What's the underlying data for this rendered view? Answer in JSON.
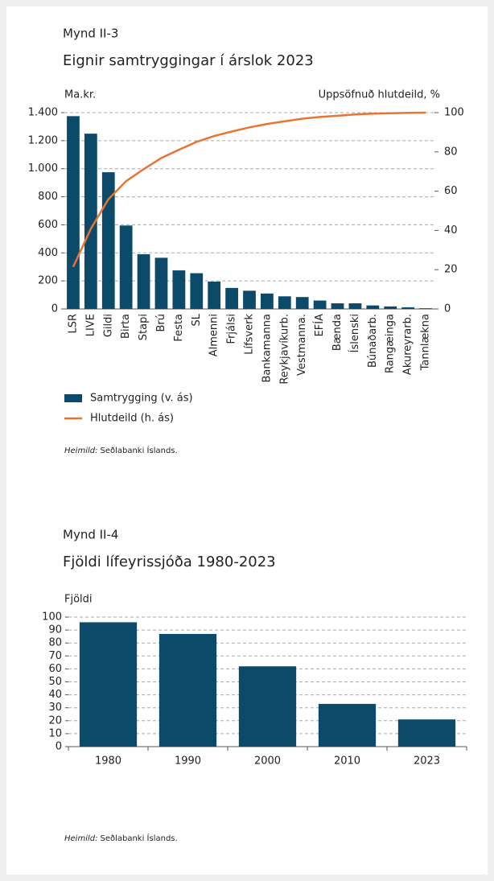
{
  "chart_data": [
    {
      "type": "bar",
      "label": "Mynd II-3",
      "title": "Eignir samtryggingar í árslok 2023",
      "ylabel": "Ma.kr.",
      "y2label": "Uppsöfnuð hlutdeild, %",
      "categories": [
        "LSR",
        "LIVE",
        "Gildi",
        "Birta",
        "Stapi",
        "Brú",
        "Festa",
        "SL",
        "Almenni",
        "Frjálsi",
        "Lífsverk",
        "Bankamanna",
        "Reykjavíkurb.",
        "Vestmanna.",
        "EFÍA",
        "Bænda",
        "Íslenski",
        "Búnaðarb.",
        "Rangæinga",
        "Akureyrarb.",
        "Tannlækna"
      ],
      "series": [
        {
          "name": "Samtrygging (v. ás)",
          "type": "bar",
          "color": "#0b4a68",
          "values": [
            1375,
            1250,
            975,
            595,
            390,
            365,
            275,
            255,
            195,
            150,
            130,
            110,
            90,
            85,
            60,
            40,
            40,
            25,
            18,
            12,
            5
          ]
        },
        {
          "name": "Hlutdeild (h. ás)",
          "type": "line",
          "axis": "y2",
          "color": "#e87433",
          "values": [
            21.4,
            40.8,
            55.9,
            65.1,
            71.2,
            76.9,
            81.1,
            85.1,
            88.1,
            90.4,
            92.5,
            94.2,
            95.6,
            96.9,
            97.8,
            98.4,
            99.1,
            99.5,
            99.7,
            99.9,
            100
          ]
        }
      ],
      "ylim": [
        0,
        1400
      ],
      "yticks": [
        0,
        200,
        400,
        600,
        800,
        {
          "value": 1000,
          "label": "1.000"
        },
        {
          "value": 1200,
          "label": "1.200"
        },
        {
          "value": 1400,
          "label": "1.400"
        }
      ],
      "y2lim": [
        0,
        100
      ],
      "y2ticks": [
        0,
        20,
        40,
        60,
        80,
        100
      ],
      "grid": true,
      "source_label": "Heimild:",
      "source": "Seðlabanki Íslands."
    },
    {
      "type": "bar",
      "label": "Mynd II-4",
      "title": "Fjöldi lífeyrissjóða 1980-2023",
      "ylabel": "Fjöldi",
      "categories": [
        "1980",
        "1990",
        "2000",
        "2010",
        "2023"
      ],
      "series": [
        {
          "type": "bar",
          "color": "#0b4a68",
          "values": [
            96,
            87,
            62,
            33,
            21
          ]
        }
      ],
      "ylim": [
        0,
        100
      ],
      "yticks": [
        0,
        10,
        20,
        30,
        40,
        50,
        60,
        70,
        80,
        90,
        100
      ],
      "grid": true,
      "source_label": "Heimild:",
      "source": "Seðlabanki Íslands."
    }
  ]
}
